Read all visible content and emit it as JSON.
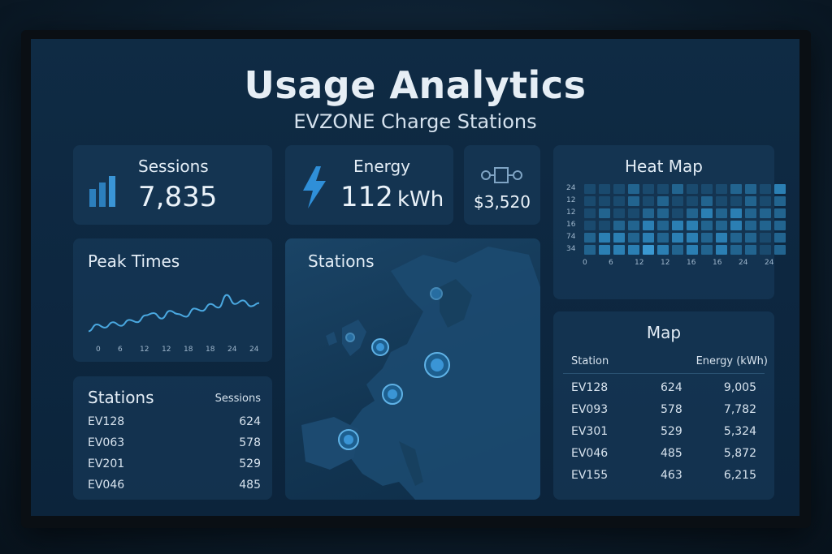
{
  "header": {
    "title": "Usage Analytics",
    "subtitle": "EVZONE Charge Stations"
  },
  "kpis": {
    "sessions": {
      "label": "Sessions",
      "value": "7,835",
      "icon": "bar-chart-icon"
    },
    "energy": {
      "label": "Energy",
      "value": "112",
      "unit": "kWh",
      "icon": "lightning-icon"
    },
    "revenue": {
      "value": "$3,520",
      "icon": "connector-icon"
    }
  },
  "peak_times": {
    "title": "Peak Times",
    "x_ticks": [
      "0",
      "6",
      "12",
      "12",
      "18",
      "18",
      "24",
      "24"
    ],
    "values": [
      0.1,
      0.25,
      0.18,
      0.3,
      0.22,
      0.35,
      0.3,
      0.45,
      0.5,
      0.38,
      0.55,
      0.48,
      0.42,
      0.6,
      0.55,
      0.7,
      0.62,
      0.9,
      0.7,
      0.78,
      0.65,
      0.72
    ]
  },
  "stations_list": {
    "title": "Stations",
    "col_header": "Sessions",
    "rows": [
      {
        "id": "EV128",
        "sessions": "624"
      },
      {
        "id": "EV063",
        "sessions": "578"
      },
      {
        "id": "EV201",
        "sessions": "529"
      },
      {
        "id": "EV046",
        "sessions": "485"
      }
    ]
  },
  "stations_map": {
    "title": "Stations"
  },
  "heat_map": {
    "title": "Heat Map",
    "y_labels": [
      "24",
      "12",
      "12",
      "16",
      "74",
      "34"
    ],
    "x_labels": [
      "0",
      "6",
      "12",
      "12",
      "16",
      "16",
      "24",
      "24"
    ],
    "rows": [
      [
        1,
        1,
        1,
        2,
        1,
        1,
        2,
        1,
        1,
        1,
        2,
        2,
        1,
        3
      ],
      [
        1,
        1,
        1,
        2,
        1,
        2,
        1,
        1,
        2,
        1,
        1,
        2,
        1,
        2
      ],
      [
        1,
        2,
        1,
        1,
        2,
        2,
        1,
        2,
        3,
        2,
        3,
        2,
        2,
        2
      ],
      [
        1,
        1,
        2,
        2,
        3,
        2,
        3,
        3,
        2,
        2,
        3,
        2,
        2,
        2
      ],
      [
        2,
        3,
        3,
        2,
        3,
        2,
        3,
        3,
        2,
        3,
        2,
        2,
        1,
        2
      ],
      [
        2,
        3,
        3,
        3,
        4,
        3,
        2,
        3,
        2,
        3,
        2,
        2,
        1,
        2
      ]
    ],
    "colors": [
      "#143550",
      "#1a4a6e",
      "#22648f",
      "#2b7fb3",
      "#3a98d1"
    ]
  },
  "map_table": {
    "title": "Map",
    "headers": [
      "Station",
      "Energy (kWh)"
    ],
    "rows": [
      {
        "id": "EV128",
        "sessions": "624",
        "energy": "9,005"
      },
      {
        "id": "EV093",
        "sessions": "578",
        "energy": "7,782"
      },
      {
        "id": "EV301",
        "sessions": "529",
        "energy": "5,324"
      },
      {
        "id": "EV046",
        "sessions": "485",
        "energy": "5,872"
      },
      {
        "id": "EV155",
        "sessions": "463",
        "energy": "6,215"
      }
    ]
  },
  "colors": {
    "accent": "#3a8fd0",
    "line": "#4aa8e0",
    "text": "#e3edf6"
  }
}
